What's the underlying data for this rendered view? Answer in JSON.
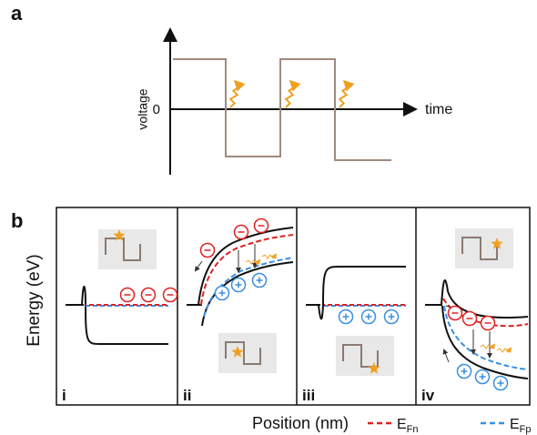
{
  "panel_a": {
    "label": "a",
    "y_axis": "voltage",
    "origin": "0",
    "x_axis": "time"
  },
  "panel_b": {
    "label": "b",
    "y_axis": "Energy (eV)",
    "x_axis": "Position (nm)",
    "panels": [
      "i",
      "ii",
      "iii",
      "iv"
    ],
    "legend": [
      {
        "main": "E",
        "sub": "Fn"
      },
      {
        "main": "E",
        "sub": "Fp"
      }
    ]
  }
}
